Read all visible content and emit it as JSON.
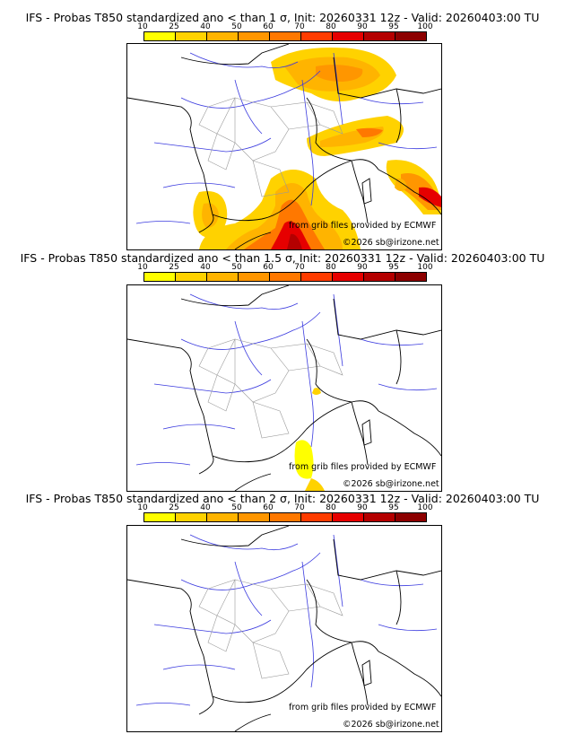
{
  "colorbar": {
    "ticks": [
      "10",
      "25",
      "40",
      "50",
      "60",
      "70",
      "80",
      "90",
      "95",
      "100"
    ],
    "colors": [
      "#ffff00",
      "#ffd200",
      "#ffb400",
      "#ff9600",
      "#ff7800",
      "#ff3c00",
      "#e60000",
      "#b40000",
      "#8c0000"
    ]
  },
  "panels": [
    {
      "title": "IFS - Probas T850  standardized ano < than 1 σ, Init: 20260331 12z - Valid: 20260403:00 TU",
      "credit_source": "from grib files provided by ECMWF",
      "credit_copyright": "©2026 sb@irizone.net"
    },
    {
      "title": "IFS - Probas T850  standardized ano < than 1.5 σ, Init: 20260331 12z - Valid: 20260403:00 TU",
      "credit_source": "from grib files provided by ECMWF",
      "credit_copyright": "©2026 sb@irizone.net"
    },
    {
      "title": "IFS - Probas T850  standardized ano < than 2 σ, Init: 20260331 12z - Valid: 20260403:00 TU",
      "credit_source": "from grib files provided by ECMWF",
      "credit_copyright": "©2026 sb@irizone.net"
    }
  ]
}
